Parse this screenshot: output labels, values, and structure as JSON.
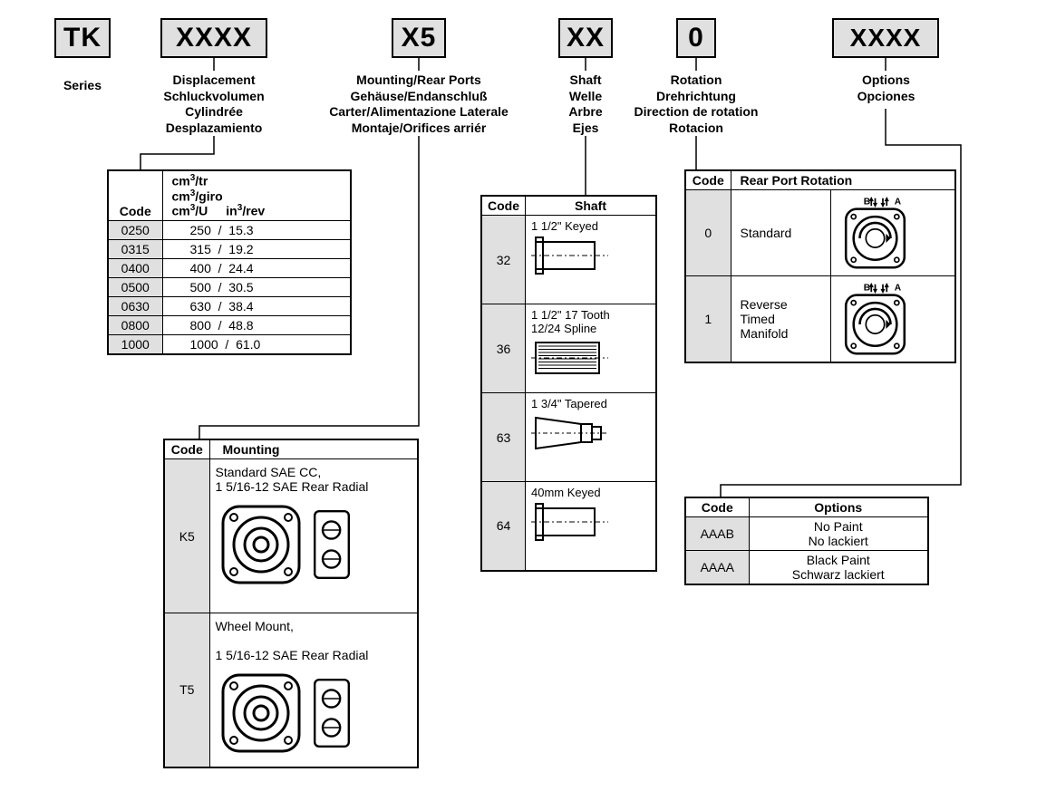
{
  "boxes": {
    "series": "TK",
    "displacement": "XXXX",
    "mounting": "X5",
    "shaft": "XX",
    "rotation": "0",
    "options": "XXXX"
  },
  "labels": {
    "series": [
      "Series"
    ],
    "displacement": [
      "Displacement",
      "Schluckvolumen",
      "Cylindrée",
      "Desplazamiento"
    ],
    "mounting": [
      "Mounting/Rear Ports",
      "Gehäuse/Endanschluß",
      "Carter/Alimentazione Laterale",
      "Montaje/Orifices arriér"
    ],
    "shaft": [
      "Shaft",
      "Welle",
      "Arbre",
      "Ejes"
    ],
    "rotation": [
      "Rotation",
      "Drehrichtung",
      "Direction de rotation",
      "Rotacion"
    ],
    "options": [
      "Options",
      "Opciones"
    ]
  },
  "displacement_table": {
    "header_code": "Code",
    "header_units_top": "cm³/tr\ncm³/giro",
    "header_units_bottom_left": "cm³/U",
    "header_units_bottom_right": "in³/rev",
    "rows": [
      {
        "code": "0250",
        "cm3": "250",
        "in3": "15.3"
      },
      {
        "code": "0315",
        "cm3": "315",
        "in3": "19.2"
      },
      {
        "code": "0400",
        "cm3": "400",
        "in3": "24.4"
      },
      {
        "code": "0500",
        "cm3": "500",
        "in3": "30.5"
      },
      {
        "code": "0630",
        "cm3": "630",
        "in3": "38.4"
      },
      {
        "code": "0800",
        "cm3": "800",
        "in3": "48.8"
      },
      {
        "code": "1000",
        "cm3": "1000",
        "in3": "61.0"
      }
    ]
  },
  "mounting_table": {
    "header_code": "Code",
    "header_mounting": "Mounting",
    "rows": [
      {
        "code": "K5",
        "text": "Standard  SAE CC,\n1 5/16-12 SAE Rear Radial"
      },
      {
        "code": "T5",
        "text": "Wheel Mount,\n\n1 5/16-12 SAE Rear Radial"
      }
    ]
  },
  "shaft_table": {
    "header_code": "Code",
    "header_shaft": "Shaft",
    "rows": [
      {
        "code": "32",
        "text": "1 1/2\" Keyed"
      },
      {
        "code": "36",
        "text": "1 1/2\" 17 Tooth\n12/24 Spline"
      },
      {
        "code": "63",
        "text": "1 3/4\" Tapered"
      },
      {
        "code": "64",
        "text": "40mm Keyed"
      }
    ]
  },
  "rotation_table": {
    "header_code": "Code",
    "header_rot": "Rear Port Rotation",
    "rows": [
      {
        "code": "0",
        "text": "Standard"
      },
      {
        "code": "1",
        "text": "Reverse\nTimed\nManifold"
      }
    ]
  },
  "options_table": {
    "header_code": "Code",
    "header_opt": "Options",
    "rows": [
      {
        "code": "AAAB",
        "text": "No Paint\nNo lackiert"
      },
      {
        "code": "AAAA",
        "text": "Black Paint\nSchwarz lackiert"
      }
    ]
  },
  "colors": {
    "box_bg": "#e0e0e0",
    "border": "#000000",
    "bg": "#ffffff"
  }
}
